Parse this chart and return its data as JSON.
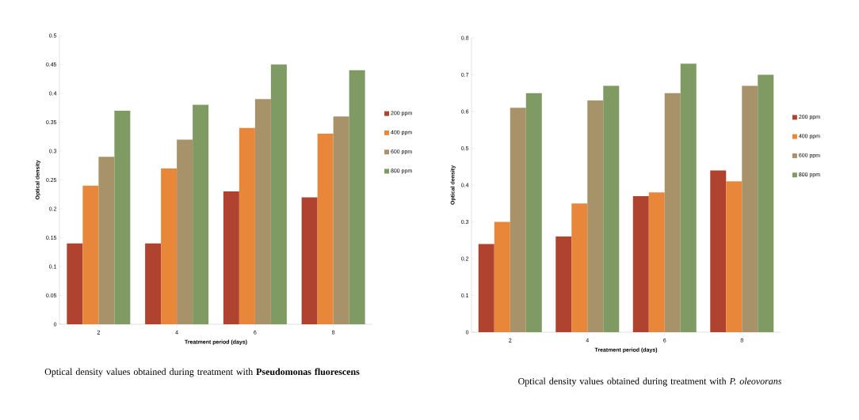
{
  "chart_data": [
    {
      "type": "bar",
      "xlabel": "Treatment period (days)",
      "ylabel": "Optical density",
      "categories": [
        "2",
        "4",
        "6",
        "8"
      ],
      "series": [
        {
          "name": "200 ppm",
          "color": "#b0432f",
          "values": [
            0.14,
            0.14,
            0.23,
            0.22
          ]
        },
        {
          "name": "400 ppm",
          "color": "#e8873a",
          "values": [
            0.24,
            0.27,
            0.34,
            0.33
          ]
        },
        {
          "name": "600 ppm",
          "color": "#a8926a",
          "values": [
            0.29,
            0.32,
            0.39,
            0.36
          ]
        },
        {
          "name": "800 ppm",
          "color": "#7f9a63",
          "values": [
            0.37,
            0.38,
            0.45,
            0.44
          ]
        }
      ],
      "ylim": [
        0,
        0.5
      ],
      "yticks": [
        0,
        0.05,
        0.1,
        0.15,
        0.2,
        0.25,
        0.3,
        0.35,
        0.4,
        0.45,
        0.5
      ],
      "grid": false,
      "legend": "right",
      "annotations": [
        "Optical density values obtained during treatment with **Pseudomonas fluorescens**"
      ]
    },
    {
      "type": "bar",
      "xlabel": "Treatment period (days)",
      "ylabel": "Optical density",
      "categories": [
        "2",
        "4",
        "6",
        "8"
      ],
      "series": [
        {
          "name": "200 ppm",
          "color": "#b0432f",
          "values": [
            0.24,
            0.26,
            0.37,
            0.44
          ]
        },
        {
          "name": "400 ppm",
          "color": "#e8873a",
          "values": [
            0.3,
            0.35,
            0.38,
            0.41
          ]
        },
        {
          "name": "600 ppm",
          "color": "#a8926a",
          "values": [
            0.61,
            0.63,
            0.65,
            0.67
          ]
        },
        {
          "name": "800 ppm",
          "color": "#7f9a63",
          "values": [
            0.65,
            0.67,
            0.73,
            0.7
          ]
        }
      ],
      "ylim": [
        0,
        0.8
      ],
      "yticks": [
        0,
        0.1,
        0.2,
        0.3,
        0.4,
        0.5,
        0.6,
        0.7,
        0.8
      ],
      "grid": false,
      "legend": "right",
      "annotations": [
        "Optical density values obtained during treatment with *P. oleovorans*"
      ]
    }
  ]
}
